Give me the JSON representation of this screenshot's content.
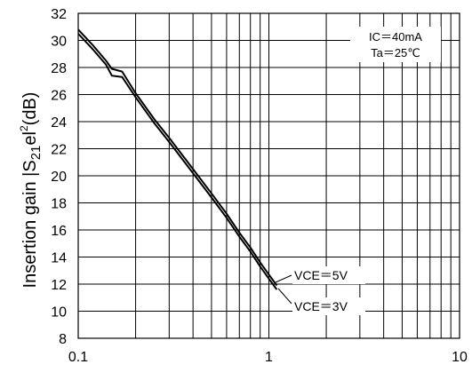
{
  "chart_data": {
    "type": "line",
    "title": "",
    "xlabel": "",
    "ylabel_prefix": "Insertion gain |S",
    "ylabel_sub": "21",
    "ylabel_mid": "el",
    "ylabel_sup": "2",
    "ylabel_suffix": "(dB)",
    "x_scale": "log",
    "xlim": [
      0.1,
      10
    ],
    "ylim": [
      8,
      32
    ],
    "x_ticks": [
      0.1,
      1,
      10
    ],
    "x_tick_labels": [
      "0.1",
      "1",
      "10"
    ],
    "y_ticks": [
      8,
      10,
      12,
      14,
      16,
      18,
      20,
      22,
      24,
      26,
      28,
      30,
      32
    ],
    "y_tick_labels": [
      "8",
      "10",
      "12",
      "14",
      "16",
      "18",
      "20",
      "22",
      "24",
      "26",
      "28",
      "30",
      "32"
    ],
    "grid": true,
    "conditions": [
      "IC＝40mA",
      "Ta＝25℃"
    ],
    "series": [
      {
        "name": "VCE＝5V",
        "x": [
          0.1,
          0.12,
          0.14,
          0.15,
          0.17,
          0.2,
          0.25,
          0.3,
          0.4,
          0.5,
          0.6,
          0.7,
          0.8,
          0.9,
          1.0,
          1.1
        ],
        "y": [
          30.8,
          29.6,
          28.5,
          27.9,
          27.7,
          26.1,
          24.2,
          22.8,
          20.5,
          18.7,
          17.2,
          15.8,
          14.7,
          13.6,
          12.7,
          11.9
        ],
        "color": "#000000"
      },
      {
        "name": "VCE＝3V",
        "x": [
          0.1,
          0.12,
          0.14,
          0.15,
          0.17,
          0.2,
          0.25,
          0.3,
          0.4,
          0.5,
          0.6,
          0.7,
          0.8,
          0.9,
          1.0,
          1.1
        ],
        "y": [
          30.5,
          29.3,
          28.2,
          27.4,
          27.3,
          25.8,
          23.9,
          22.5,
          20.2,
          18.4,
          16.9,
          15.5,
          14.4,
          13.3,
          12.4,
          11.6
        ],
        "color": "#000000"
      }
    ]
  }
}
